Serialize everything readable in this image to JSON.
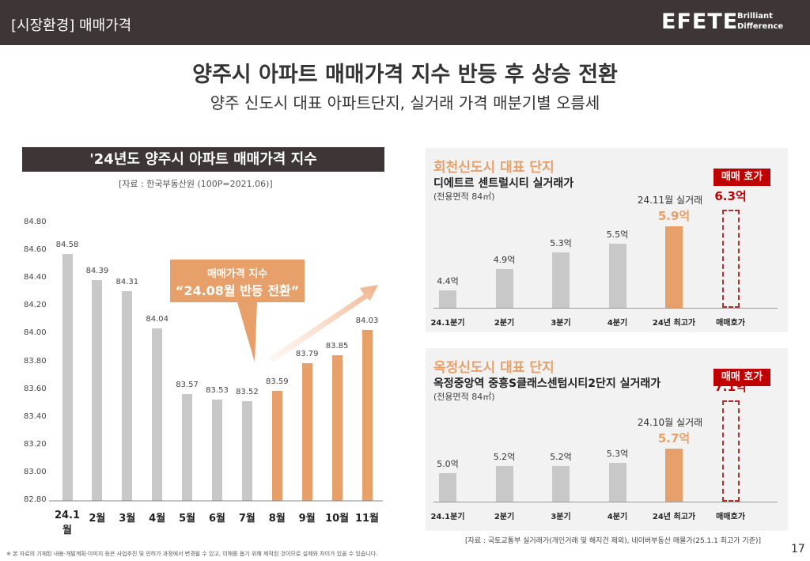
{
  "header": {
    "section": "[시장환경] 매매가격",
    "logo": "EFETE",
    "logo_tag1": "Brilliant",
    "logo_tag2": "Difference"
  },
  "title": "양주시 아파트 매매가격 지수 반등 후 상승 전환",
  "subtitle": "양주 신도시 대표 아파트단지, 실거래 가격 매분기별 오름세",
  "left_chart": {
    "title": "'24년도 양주시 아파트 매매가격 지수",
    "source": "[자료 : 한국부동산원 (100P=2021.06)]",
    "callout_line1": "매매가격 지수",
    "callout_line2": "“24.08월 반등 전환”"
  },
  "chart_data": [
    {
      "type": "bar",
      "categories": [
        "24.1월",
        "2월",
        "3월",
        "4월",
        "5월",
        "6월",
        "7월",
        "8월",
        "9월",
        "10월",
        "11월"
      ],
      "values": [
        84.58,
        84.39,
        84.31,
        84.04,
        83.57,
        83.53,
        83.52,
        83.59,
        83.79,
        83.85,
        84.03
      ],
      "value_labels": [
        "84.58",
        "84.39",
        "84.31",
        "84.04",
        "83.57",
        "83.53",
        "83.52",
        "83.59",
        "83.79",
        "83.85",
        "84.03"
      ],
      "yticks": [
        "84.80",
        "84.60",
        "84.40",
        "84.20",
        "84.00",
        "83.80",
        "83.60",
        "83.40",
        "83.20",
        "83.00",
        "82.80"
      ],
      "ylim": [
        82.8,
        84.8
      ],
      "highlight_from": "8월",
      "colors": {
        "default": "#c8c8c8",
        "highlight": "#e8a06a"
      }
    },
    {
      "type": "bar",
      "title": "회천신도시 대표 단지",
      "subtitle": "디에트르 센트럴시티 실거래가",
      "area": "(전용면적 84㎡)",
      "categories": [
        "24.1분기",
        "2분기",
        "3분기",
        "4분기",
        "24년 최고가",
        "매매호가"
      ],
      "values": [
        4.4,
        4.9,
        5.3,
        5.5,
        5.9,
        6.3
      ],
      "value_labels": [
        "4.4억",
        "4.9억",
        "5.3억",
        "5.5억",
        "5.9억",
        "6.3억"
      ],
      "note": "24.11월 실거래",
      "badge": "매매 호가"
    },
    {
      "type": "bar",
      "title": "옥정신도시 대표 단지",
      "subtitle": "옥정중앙역 중흥S클래스센텀시티2단지 실거래가",
      "area": "(전용면적 84㎡)",
      "categories": [
        "24.1분기",
        "2분기",
        "3분기",
        "4분기",
        "24년 최고가",
        "매매호가"
      ],
      "values": [
        5.0,
        5.2,
        5.2,
        5.3,
        5.7,
        7.1
      ],
      "value_labels": [
        "5.0억",
        "5.2억",
        "5.2억",
        "5.3억",
        "5.7억",
        "7.1억"
      ],
      "note": "24.10월 실거래",
      "badge": "매매 호가"
    }
  ],
  "footer": {
    "source": "[자료 : 국토교통부 실거래가(개인거래 및 해지건 제외), 네이버부동산 매물가(25.1.1 최고가 기준)]",
    "disclaimer": "※ 본 자료의 기재된 내용·개발계획·이미지 등은 사업추진 및 인허가 과정에서 변경될 수 있고, 이해를 돕기 위해 제작된 것이므로 실제와 차이가 있을 수 있습니다.",
    "page": "17"
  },
  "colors": {
    "header_bg": "#3d3536",
    "accent": "#e8a06a",
    "red": "#c00000",
    "bar": "#c8c8c8"
  }
}
